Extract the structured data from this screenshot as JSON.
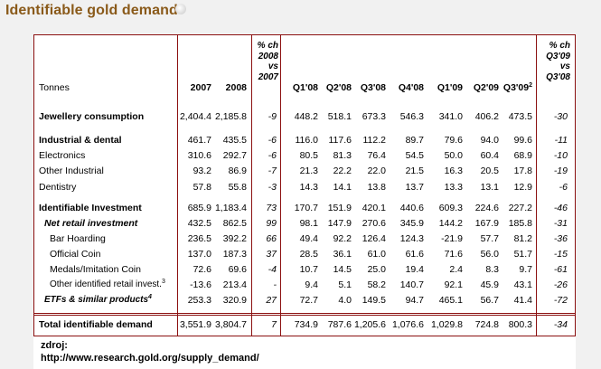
{
  "title": "Identifiable gold demand",
  "table": {
    "header": {
      "unit": "Tonnes",
      "years": [
        "2007",
        "2008"
      ],
      "pct_ch_year": [
        "% ch",
        "2008",
        "vs",
        "2007"
      ],
      "quarters": [
        "Q1'08",
        "Q2'08",
        "Q3'08",
        "Q4'08",
        "Q1'09",
        "Q2'09",
        "Q3'09"
      ],
      "last_quarter_sup": "2",
      "pct_ch_quarter": [
        "% ch",
        "Q3'09",
        "vs",
        "Q3'08"
      ]
    },
    "rows": [
      {
        "label": "Jewellery consumption",
        "sup": "",
        "style": "bold",
        "indent": 0,
        "y2007": "2,404.4",
        "y2008": "2,185.8",
        "pct_y": "-9",
        "q": [
          "448.2",
          "518.1",
          "673.3",
          "546.3",
          "341.0",
          "406.2",
          "473.5"
        ],
        "pct_q": "-30"
      },
      {
        "label": "Industrial & dental",
        "sup": "",
        "style": "bold",
        "indent": 0,
        "y2007": "461.7",
        "y2008": "435.5",
        "pct_y": "-6",
        "q": [
          "116.0",
          "117.6",
          "112.2",
          "89.7",
          "79.6",
          "94.0",
          "99.6"
        ],
        "pct_q": "-11"
      },
      {
        "label": "Electronics",
        "sup": "",
        "style": "normal",
        "indent": 0,
        "y2007": "310.6",
        "y2008": "292.7",
        "pct_y": "-6",
        "q": [
          "80.5",
          "81.3",
          "76.4",
          "54.5",
          "50.0",
          "60.4",
          "68.9"
        ],
        "pct_q": "-10"
      },
      {
        "label": "Other Industrial",
        "sup": "",
        "style": "normal",
        "indent": 0,
        "y2007": "93.2",
        "y2008": "86.9",
        "pct_y": "-7",
        "q": [
          "21.3",
          "22.2",
          "22.0",
          "21.5",
          "16.3",
          "20.5",
          "17.8"
        ],
        "pct_q": "-19"
      },
      {
        "label": "Dentistry",
        "sup": "",
        "style": "normal",
        "indent": 0,
        "y2007": "57.8",
        "y2008": "55.8",
        "pct_y": "-3",
        "q": [
          "14.3",
          "14.1",
          "13.8",
          "13.7",
          "13.3",
          "13.1",
          "12.9"
        ],
        "pct_q": "-6"
      },
      {
        "label": "Identifiable Investment",
        "sup": "",
        "style": "bold",
        "indent": 0,
        "y2007": "685.9",
        "y2008": "1,183.4",
        "pct_y": "73",
        "q": [
          "170.7",
          "151.9",
          "420.1",
          "440.6",
          "609.3",
          "224.6",
          "227.2"
        ],
        "pct_q": "-46"
      },
      {
        "label": "Net retail investment",
        "sup": "",
        "style": "bolditalic",
        "indent": 1,
        "y2007": "432.5",
        "y2008": "862.5",
        "pct_y": "99",
        "q": [
          "98.1",
          "147.9",
          "270.6",
          "345.9",
          "144.2",
          "167.9",
          "185.8"
        ],
        "pct_q": "-31"
      },
      {
        "label": "Bar Hoarding",
        "sup": "",
        "style": "normal",
        "indent": 2,
        "y2007": "236.5",
        "y2008": "392.2",
        "pct_y": "66",
        "q": [
          "49.4",
          "92.2",
          "126.4",
          "124.3",
          "-21.9",
          "57.7",
          "81.2"
        ],
        "pct_q": "-36"
      },
      {
        "label": "Official Coin",
        "sup": "",
        "style": "normal",
        "indent": 2,
        "y2007": "137.0",
        "y2008": "187.3",
        "pct_y": "37",
        "q": [
          "28.5",
          "36.1",
          "61.0",
          "61.6",
          "71.6",
          "56.0",
          "51.7"
        ],
        "pct_q": "-15"
      },
      {
        "label": "Medals/Imitation Coin",
        "sup": "",
        "style": "normal",
        "indent": 2,
        "y2007": "72.6",
        "y2008": "69.6",
        "pct_y": "-4",
        "q": [
          "10.7",
          "14.5",
          "25.0",
          "19.4",
          "2.4",
          "8.3",
          "9.7"
        ],
        "pct_q": "-61"
      },
      {
        "label": "Other identified retail invest.",
        "sup": "3",
        "style": "normal",
        "indent": 2,
        "y2007": "-13.6",
        "y2008": "213.4",
        "pct_y": "-",
        "q": [
          "9.4",
          "5.1",
          "58.2",
          "140.7",
          "92.1",
          "45.9",
          "43.1"
        ],
        "pct_q": "-26"
      },
      {
        "label": "ETFs & similar products",
        "sup": "4",
        "style": "bolditalic",
        "indent": 1,
        "y2007": "253.3",
        "y2008": "320.9",
        "pct_y": "27",
        "q": [
          "72.7",
          "4.0",
          "149.5",
          "94.7",
          "465.1",
          "56.7",
          "41.4"
        ],
        "pct_q": "-72"
      },
      {
        "label": "Total identifiable demand",
        "sup": "",
        "style": "bold",
        "indent": 0,
        "y2007": "3,551.9",
        "y2008": "3,804.7",
        "pct_y": "7",
        "q": [
          "734.9",
          "787.6",
          "1,205.6",
          "1,076.6",
          "1,029.8",
          "724.8",
          "800.3"
        ],
        "pct_q": "-34"
      }
    ]
  },
  "source": {
    "label": "zdroj:",
    "url": "http://www.research.gold.org/supply_demand/"
  }
}
